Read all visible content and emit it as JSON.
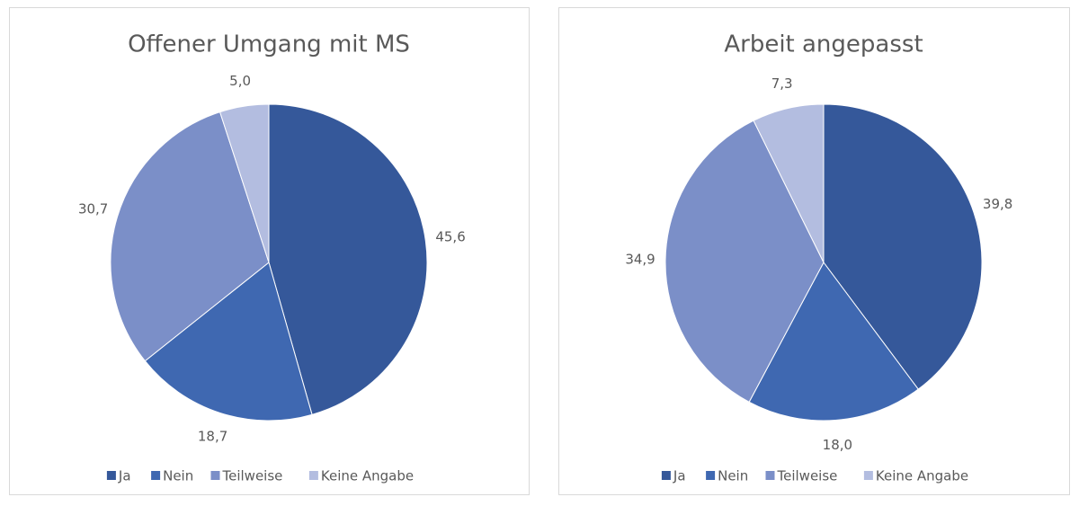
{
  "chart_data": [
    {
      "type": "pie",
      "title": "Offener Umgang mit MS",
      "categories": [
        "Ja",
        "Nein",
        "Teilweise",
        "Keine Angabe"
      ],
      "values": [
        45.6,
        18.7,
        30.7,
        5.0
      ],
      "value_labels": [
        "45,6",
        "18,7",
        "30,7",
        "5,0"
      ],
      "colors": [
        "#35589a",
        "#3f68b1",
        "#7b8fc8",
        "#b3bde0"
      ]
    },
    {
      "type": "pie",
      "title": "Arbeit angepasst",
      "categories": [
        "Ja",
        "Nein",
        "Teilweise",
        "Keine Angabe"
      ],
      "values": [
        39.8,
        18.0,
        34.9,
        7.3
      ],
      "value_labels": [
        "39,8",
        "18,0",
        "34,9",
        "7,3"
      ],
      "colors": [
        "#35589a",
        "#3f68b1",
        "#7b8fc8",
        "#b3bde0"
      ]
    }
  ]
}
